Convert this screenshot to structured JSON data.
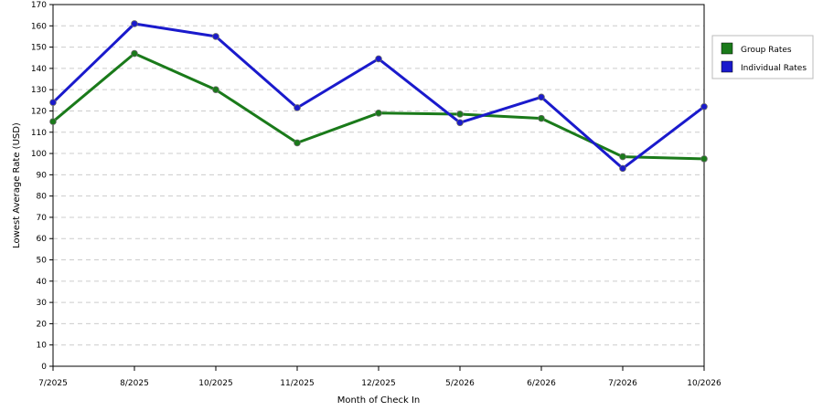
{
  "chart_data": {
    "type": "line",
    "xlabel": "Month of Check In",
    "ylabel": "Lowest Average Rate (USD)",
    "categories": [
      "7/2025",
      "8/2025",
      "10/2025",
      "11/2025",
      "12/2025",
      "5/2026",
      "6/2026",
      "7/2026",
      "10/2026"
    ],
    "ylim": [
      0,
      170
    ],
    "y_ticks": [
      0,
      10,
      20,
      30,
      40,
      50,
      60,
      70,
      80,
      90,
      100,
      110,
      120,
      130,
      140,
      150,
      160,
      170
    ],
    "grid": true,
    "legend_position": "top-right",
    "series": [
      {
        "name": "Group Rates",
        "color": "#1a7a1a",
        "values": [
          115,
          147,
          130,
          105,
          119,
          118.5,
          116.5,
          98.5,
          97.5
        ]
      },
      {
        "name": "Individual Rates",
        "color": "#1a1acc",
        "values": [
          124,
          161,
          155,
          121.5,
          144.5,
          114.5,
          126.5,
          93,
          122
        ]
      }
    ]
  }
}
